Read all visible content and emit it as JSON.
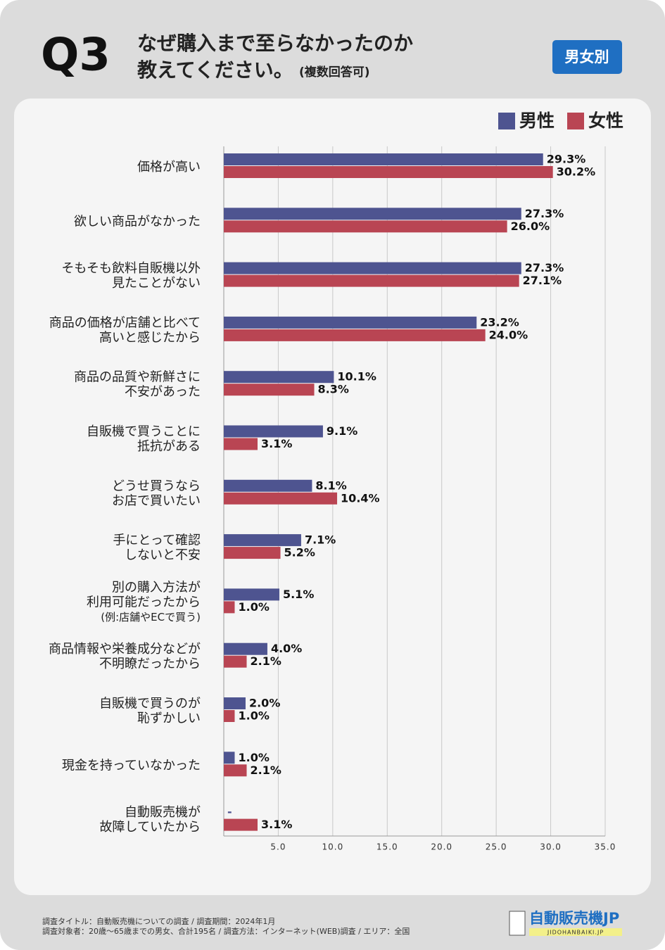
{
  "header": {
    "number": "Q3",
    "title_lines": [
      "なぜ購入まで至らなかったのか",
      "教えてください。"
    ],
    "note": "(複数回答可)",
    "badge": "男女別"
  },
  "chart_data": {
    "type": "hbar",
    "categories": [
      [
        "価格が高い"
      ],
      [
        "欲しい商品がなかった"
      ],
      [
        "そもそも飲料自販機以外",
        "見たことがない"
      ],
      [
        "商品の価格が店舗と比べて",
        "高いと感じたから"
      ],
      [
        "商品の品質や新鮮さに",
        "不安があった"
      ],
      [
        "自販機で買うことに",
        "抵抗がある"
      ],
      [
        "どうせ買うなら",
        "お店で買いたい"
      ],
      [
        "手にとって確認",
        "しないと不安"
      ],
      [
        "別の購入方法が",
        "利用可能だったから",
        "(例:店舗やECで買う)"
      ],
      [
        "商品情報や栄養成分などが",
        "不明瞭だったから"
      ],
      [
        "自販機で買うのが",
        "恥ずかしい"
      ],
      [
        "現金を持っていなかった"
      ],
      [
        "自動販売機が",
        "故障していたから"
      ]
    ],
    "series": [
      {
        "name": "男性",
        "color": "#4e5490",
        "values": [
          29.3,
          27.3,
          27.3,
          23.2,
          10.1,
          9.1,
          8.1,
          7.1,
          5.1,
          4.0,
          2.0,
          1.0,
          0
        ],
        "value_labels": [
          "29.3%",
          "27.3%",
          "27.3%",
          "23.2%",
          "10.1%",
          "9.1%",
          "8.1%",
          "7.1%",
          "5.1%",
          "4.0%",
          "2.0%",
          "1.0%",
          "-"
        ]
      },
      {
        "name": "女性",
        "color": "#b94553",
        "values": [
          30.2,
          26.0,
          27.1,
          24.0,
          8.3,
          3.1,
          10.4,
          5.2,
          1.0,
          2.1,
          1.0,
          2.1,
          3.1
        ],
        "value_labels": [
          "30.2%",
          "26.0%",
          "27.1%",
          "24.0%",
          "8.3%",
          "3.1%",
          "10.4%",
          "5.2%",
          "1.0%",
          "2.1%",
          "1.0%",
          "2.1%",
          "3.1%"
        ]
      }
    ],
    "xlim": [
      0,
      35
    ],
    "xticks": [
      {
        "value": 5,
        "label": "5.0"
      },
      {
        "value": 10,
        "label": "10.0"
      },
      {
        "value": 15,
        "label": "15.0"
      },
      {
        "value": 20,
        "label": "20.0"
      },
      {
        "value": 25,
        "label": "25.0"
      },
      {
        "value": 30,
        "label": "30.0"
      },
      {
        "value": 35,
        "label": "35.0"
      }
    ],
    "grid": true,
    "legend": "top-right"
  },
  "footer": {
    "lines": [
      "調査タイトル：自動販売機についての調査 / 調査期間：2024年1月",
      "調査対象者：20歳〜65歳までの男女、合計195名 / 調査方法：インターネット(WEB)調査 / エリア：全国"
    ],
    "logo": "自動販売機JP",
    "logo_sub": "JIDOHANBAIKI.JP"
  }
}
